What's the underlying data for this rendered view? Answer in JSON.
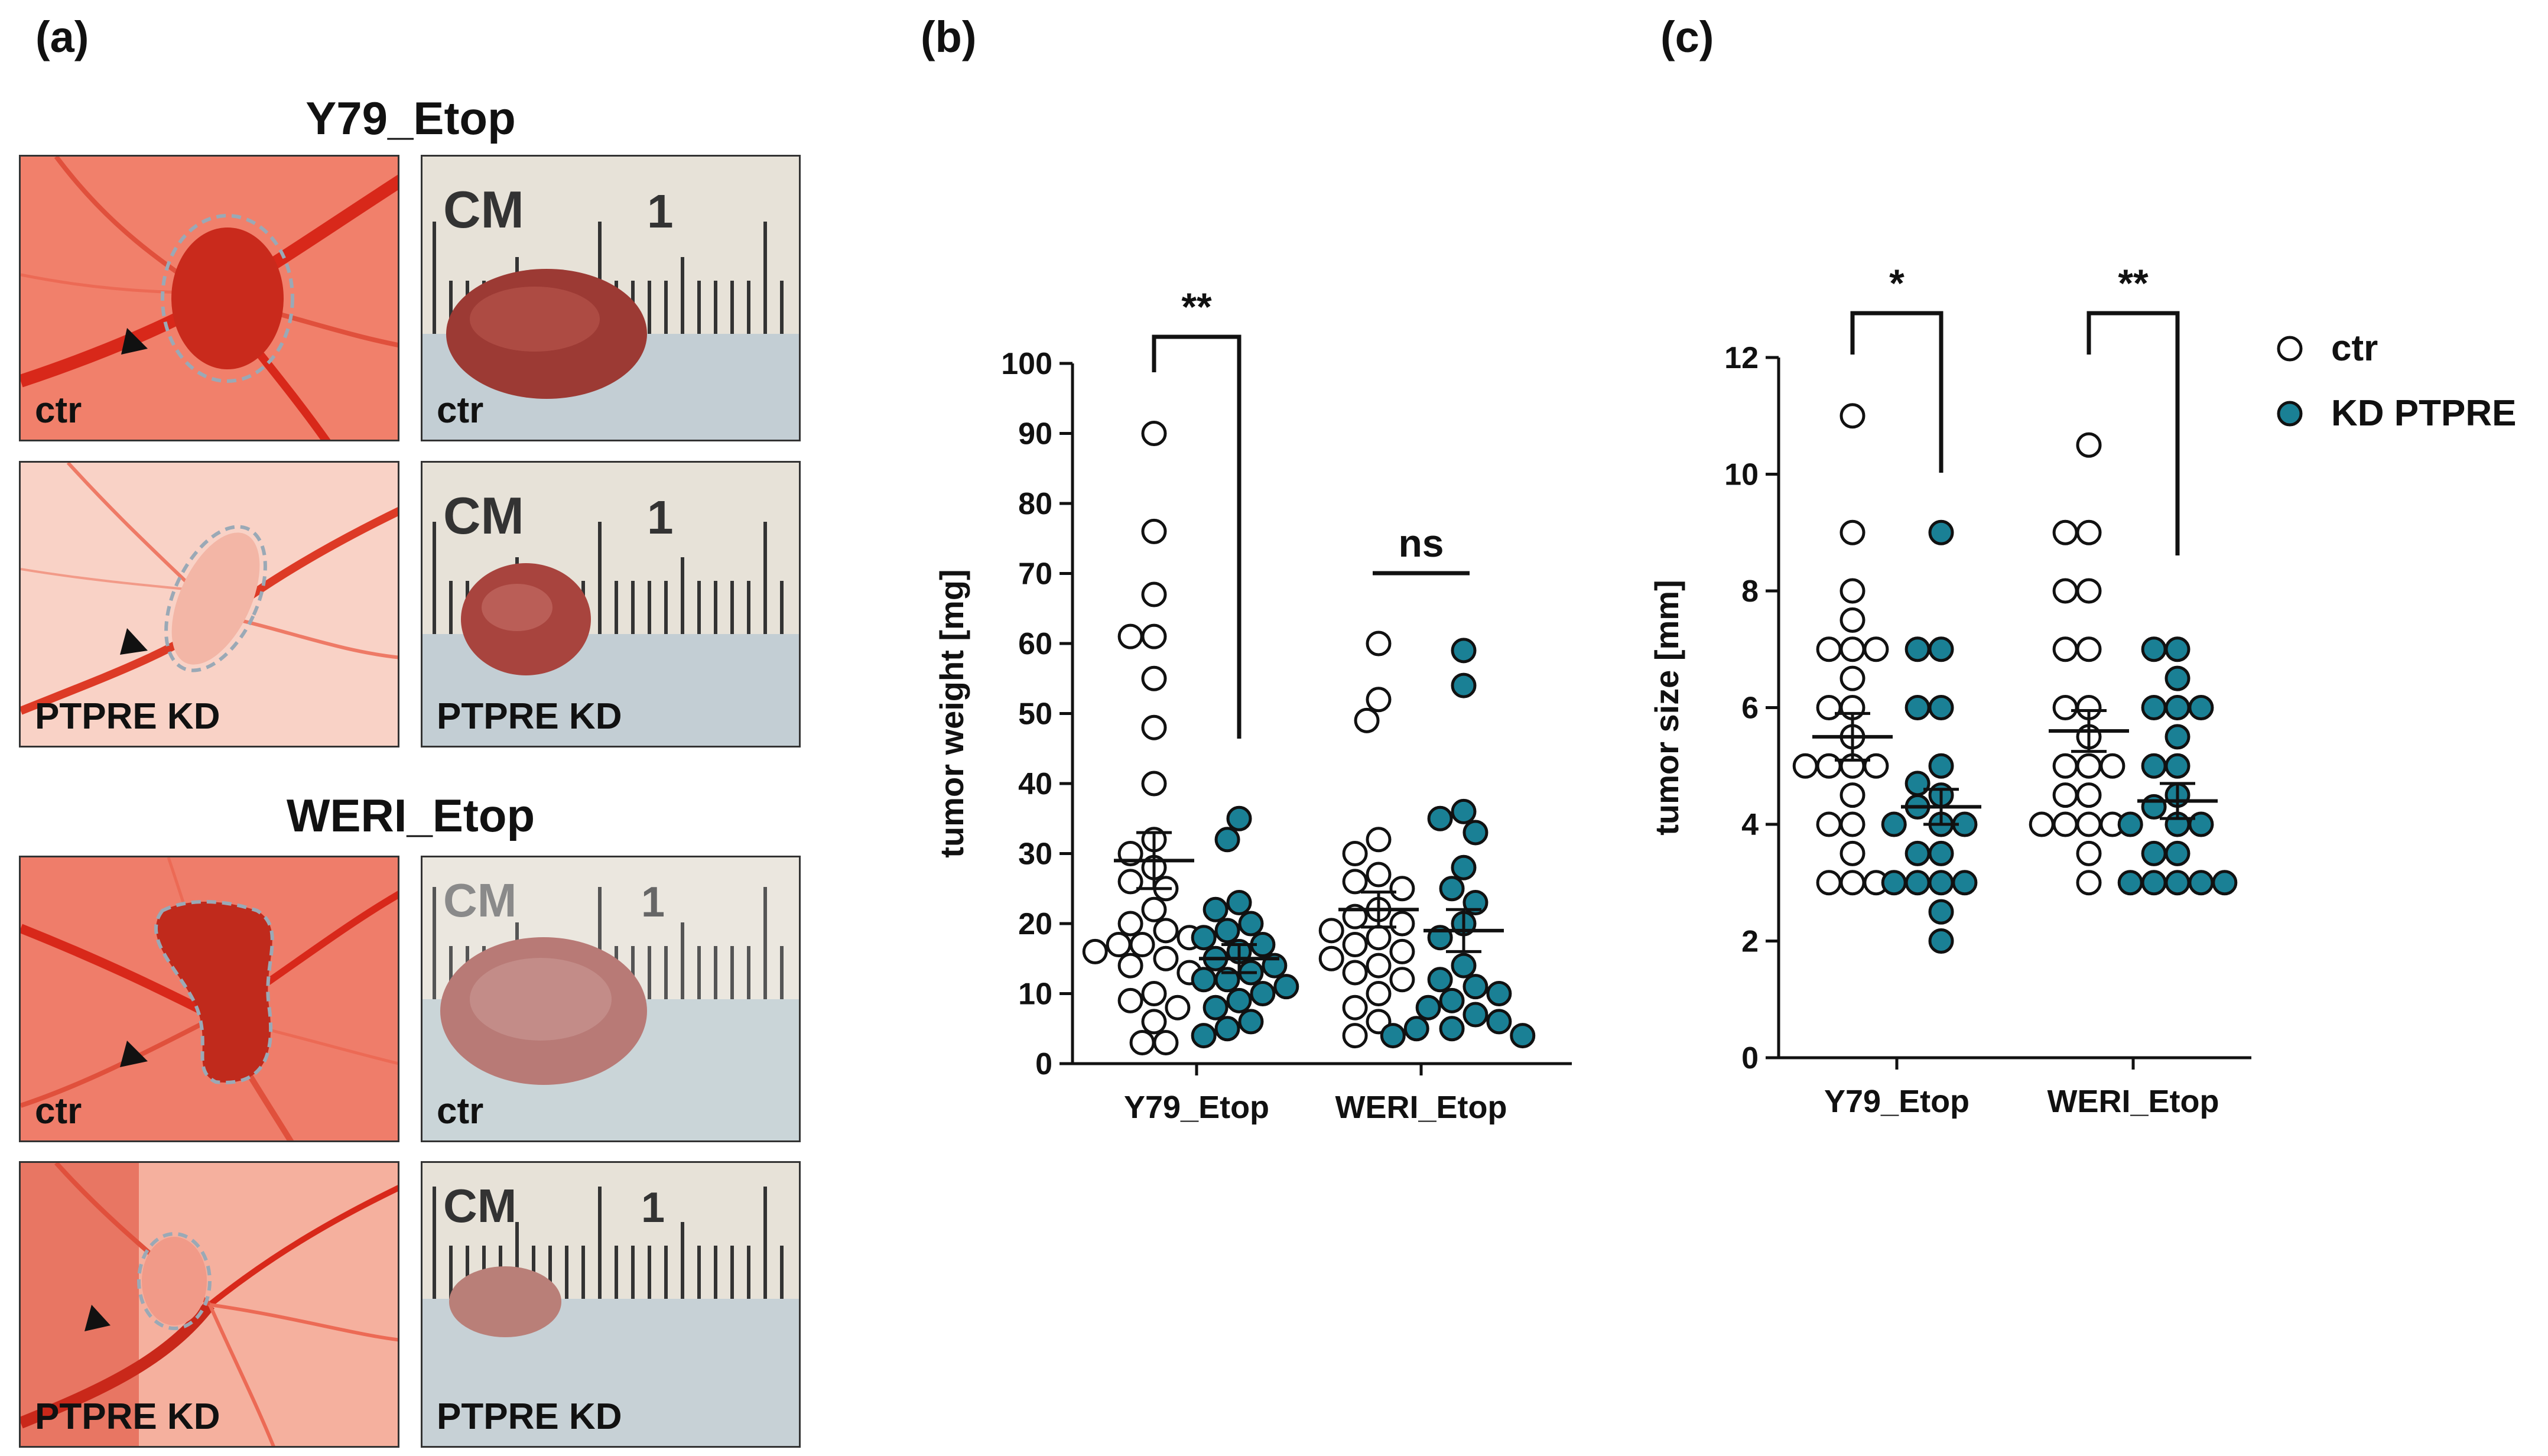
{
  "panels": {
    "a": {
      "label": "(a)",
      "groups": [
        {
          "title": "Y79_Etop",
          "cam": [
            {
              "tag": "ctr"
            },
            {
              "tag": "PTPRE KD"
            }
          ],
          "ruler": [
            {
              "tag": "ctr",
              "cm": "CM",
              "one": "1"
            },
            {
              "tag": "PTPRE KD",
              "cm": "CM",
              "one": "1"
            }
          ]
        },
        {
          "title": "WERI_Etop",
          "cam": [
            {
              "tag": "ctr"
            },
            {
              "tag": "PTPRE KD"
            }
          ],
          "ruler": [
            {
              "tag": "ctr",
              "cm": "CM",
              "one": "1"
            },
            {
              "tag": "PTPRE KD",
              "cm": "CM",
              "one": "1"
            }
          ]
        }
      ]
    },
    "b": {
      "label": "(b)"
    },
    "c": {
      "label": "(c)"
    }
  },
  "colors": {
    "ctr_fill": "#ffffff",
    "kd_fill": "#1a8095",
    "marker_edge": "#111111",
    "cam_red": "#e8452f"
  },
  "chart_data": [
    {
      "type": "scatter",
      "panel": "b",
      "ylabel": "tumor weight [mg]",
      "ylim": [
        0,
        100
      ],
      "yticks": [
        0,
        10,
        20,
        30,
        40,
        50,
        60,
        70,
        80,
        90,
        100
      ],
      "categories": [
        "Y79_Etop",
        "WERI_Etop"
      ],
      "significance": [
        "**",
        "ns"
      ],
      "series": [
        {
          "name": "ctr",
          "category": "Y79_Etop",
          "mean": 29,
          "sem": 4,
          "values": [
            90,
            76,
            67,
            61,
            61,
            55,
            48,
            40,
            32,
            30,
            28,
            26,
            25,
            22,
            20,
            19,
            18,
            17,
            17,
            16,
            15,
            14,
            13,
            10,
            9,
            8,
            6,
            3,
            3
          ]
        },
        {
          "name": "KD PTPRE",
          "category": "Y79_Etop",
          "mean": 15,
          "sem": 2,
          "values": [
            35,
            32,
            23,
            22,
            20,
            19,
            18,
            17,
            16,
            15,
            14,
            13,
            12,
            12,
            11,
            10,
            9,
            8,
            6,
            5,
            4
          ]
        },
        {
          "name": "ctr",
          "category": "WERI_Etop",
          "mean": 22,
          "sem": 2.5,
          "values": [
            60,
            52,
            49,
            32,
            30,
            27,
            26,
            25,
            22,
            21,
            20,
            19,
            18,
            17,
            16,
            15,
            14,
            13,
            12,
            10,
            8,
            6,
            4
          ]
        },
        {
          "name": "KD PTPRE",
          "category": "WERI_Etop",
          "mean": 19,
          "sem": 3,
          "values": [
            59,
            54,
            36,
            35,
            33,
            28,
            25,
            23,
            20,
            18,
            14,
            12,
            11,
            10,
            9,
            8,
            7,
            6,
            5,
            5,
            4,
            4
          ]
        }
      ]
    },
    {
      "type": "scatter",
      "panel": "c",
      "ylabel": "tumor size [mm]",
      "ylim": [
        0,
        12
      ],
      "yticks": [
        0,
        2,
        4,
        6,
        8,
        10,
        12
      ],
      "categories": [
        "Y79_Etop",
        "WERI_Etop"
      ],
      "significance": [
        "*",
        "**"
      ],
      "legend": {
        "position": "top-right",
        "entries": [
          "ctr",
          "KD PTPRE"
        ]
      },
      "series": [
        {
          "name": "ctr",
          "category": "Y79_Etop",
          "mean": 5.5,
          "sem": 0.4,
          "values": [
            11,
            9,
            8,
            7.5,
            7,
            7,
            7,
            6.5,
            6,
            6,
            5.5,
            5,
            5,
            5,
            5,
            4.5,
            4,
            4,
            3.5,
            3,
            3,
            3
          ]
        },
        {
          "name": "KD PTPRE",
          "category": "Y79_Etop",
          "mean": 4.3,
          "sem": 0.3,
          "values": [
            9,
            7,
            7,
            6,
            6,
            5,
            4.7,
            4.5,
            4.3,
            4,
            4,
            4,
            3.5,
            3.5,
            3,
            3,
            3,
            3,
            2.5,
            2
          ]
        },
        {
          "name": "ctr",
          "category": "WERI_Etop",
          "mean": 5.6,
          "sem": 0.35,
          "values": [
            10.5,
            9,
            9,
            8,
            8,
            7,
            7,
            6,
            6,
            5.5,
            5,
            5,
            5,
            4.5,
            4.5,
            4,
            4,
            4,
            4,
            3.5,
            3
          ]
        },
        {
          "name": "KD PTPRE",
          "category": "WERI_Etop",
          "mean": 4.4,
          "sem": 0.3,
          "values": [
            7,
            7,
            6.5,
            6,
            6,
            6,
            5.5,
            5,
            5,
            4.5,
            4.3,
            4,
            4,
            4,
            3.5,
            3.5,
            3,
            3,
            3,
            3,
            3
          ]
        }
      ]
    }
  ]
}
